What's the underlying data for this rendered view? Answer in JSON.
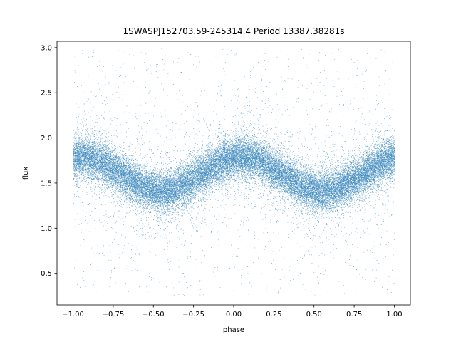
{
  "chart_data": {
    "type": "scatter",
    "title": "1SWASPJ152703.59-245314.4 Period 13387.38281s",
    "xlabel": "phase",
    "ylabel": "flux",
    "xlim": [
      -1.1,
      1.1
    ],
    "ylim": [
      0.15,
      3.07
    ],
    "x_ticks": [
      -1.0,
      -0.75,
      -0.5,
      -0.25,
      0.0,
      0.25,
      0.5,
      0.75,
      1.0
    ],
    "x_tick_labels": [
      "−1.00",
      "−0.75",
      "−0.50",
      "−0.25",
      "0.00",
      "0.25",
      "0.50",
      "0.75",
      "1.00"
    ],
    "y_ticks": [
      0.5,
      1.0,
      1.5,
      2.0,
      2.5,
      3.0
    ],
    "y_tick_labels": [
      "0.5",
      "1.0",
      "1.5",
      "2.0",
      "2.5",
      "3.0"
    ],
    "grid": false,
    "legend": "none",
    "point_color": "#1f77b4",
    "series": [
      {
        "phase_range": [
          -1.0,
          1.0
        ],
        "model": "sinusoid",
        "mean_flux": 1.6,
        "amplitude": 0.19,
        "period_in_phase": 1.0,
        "peak_phase": [
          -0.95,
          0.05
        ],
        "trough_phase": [
          -0.45,
          0.55
        ],
        "approx_points": 38000,
        "outlier_range": [
          0.25,
          3.0
        ]
      }
    ]
  }
}
